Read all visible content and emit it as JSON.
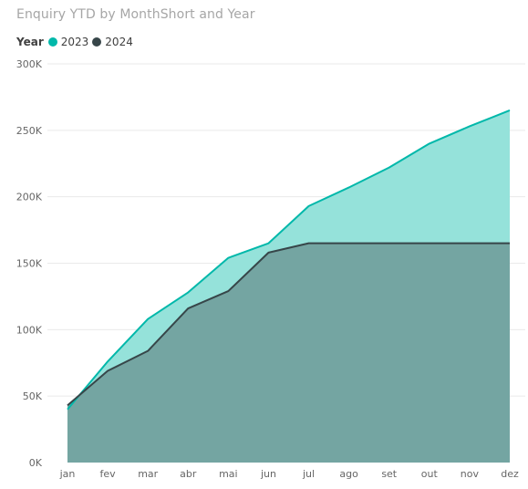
{
  "chart_data": {
    "type": "area",
    "title": "Enquiry YTD by MonthShort and Year",
    "legend": {
      "title": "Year",
      "position": "top-left"
    },
    "categories": [
      "jan",
      "fev",
      "mar",
      "abr",
      "mai",
      "jun",
      "jul",
      "ago",
      "set",
      "out",
      "nov",
      "dez"
    ],
    "series": [
      {
        "name": "2023",
        "color": "#01b8aa",
        "fill": "#95e2da",
        "values": [
          40000,
          76000,
          108000,
          128000,
          154000,
          165000,
          193000,
          207000,
          222000,
          240000,
          253000,
          265000
        ]
      },
      {
        "name": "2024",
        "color": "#374649",
        "fill": "#73a3a0",
        "values": [
          43000,
          69000,
          84000,
          116000,
          129000,
          158000,
          165000,
          165000,
          165000,
          165000,
          165000,
          165000
        ]
      }
    ],
    "y_ticks": [
      "0K",
      "50K",
      "100K",
      "150K",
      "200K",
      "250K",
      "300K"
    ],
    "ylim": [
      0,
      300000
    ],
    "grid": true,
    "xlabel": "",
    "ylabel": ""
  }
}
